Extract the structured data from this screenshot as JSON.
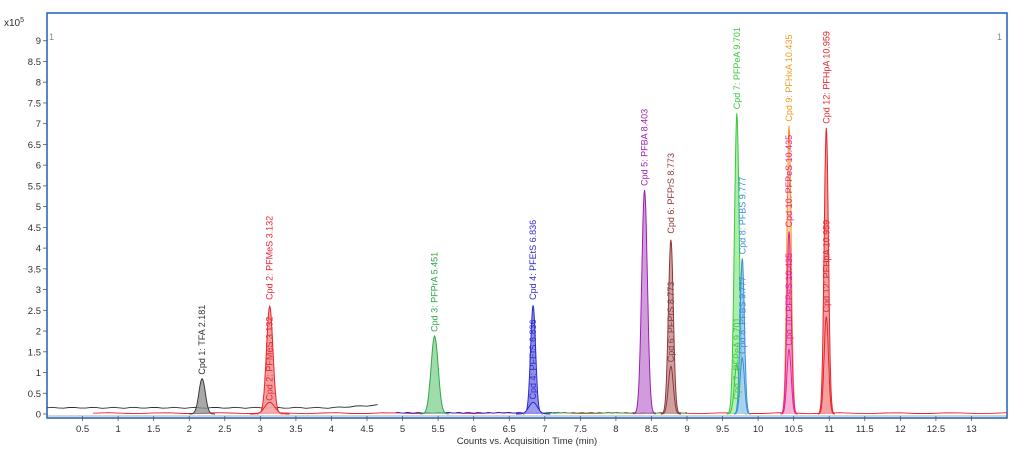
{
  "chart_data": {
    "type": "line",
    "y_multiplier": "x10",
    "y_exponent": "5",
    "corner_left": "1",
    "corner_right": "1",
    "xlabel": "Counts vs. Acquisition Time (min)",
    "xlim": [
      0,
      13.5
    ],
    "ylim": [
      0,
      9.5
    ],
    "x_ticks": [
      0.5,
      1,
      1.5,
      2,
      2.5,
      3,
      3.5,
      4,
      4.5,
      5,
      5.5,
      6,
      6.5,
      7,
      7.5,
      8,
      8.5,
      9,
      9.5,
      10,
      10.5,
      11,
      11.5,
      12,
      12.5,
      13
    ],
    "x_tick_labels": [
      "0.5",
      "1",
      "1.5",
      "2",
      "2.5",
      "3",
      "3.5",
      "4",
      "4.5",
      "5",
      "5.5",
      "6",
      "6.5",
      "7",
      "7.5",
      "8",
      "8.5",
      "9",
      "9.5",
      "10",
      "10.5",
      "11",
      "11.5",
      "12",
      "12.5",
      "13"
    ],
    "y_ticks": [
      0,
      0.5,
      1,
      1.5,
      2,
      2.5,
      3,
      3.5,
      4,
      4.5,
      5,
      5.5,
      6,
      6.5,
      7,
      7.5,
      8,
      8.5,
      9
    ],
    "y_tick_labels": [
      "0",
      "0.5",
      "1",
      "1.5",
      "2",
      "2.5",
      "3",
      "3.5",
      "4",
      "4.5",
      "5",
      "5.5",
      "6",
      "6.5",
      "7",
      "7.5",
      "8",
      "8.5",
      "9"
    ],
    "series": [
      {
        "label": "Cpd 1: TFA 2.181",
        "rt": 2.181,
        "height": 0.85,
        "width": 0.045,
        "color": "#3a3a3a",
        "fill": "#8c8c8c"
      },
      {
        "label": "Cpd 2: PFMeS 3.132",
        "rt": 3.132,
        "height": 2.6,
        "width": 0.045,
        "color": "#e8242b",
        "fill": "#f08080"
      },
      {
        "label": "Cpd 2: PFMeS 3.132",
        "rt": 3.132,
        "height": 0.28,
        "width": 0.07,
        "color": "#e8242b",
        "fill": "#f7b0b0"
      },
      {
        "label": "Cpd 3: PFPrA 5.451",
        "rt": 5.451,
        "height": 1.88,
        "width": 0.05,
        "color": "#2ea84a",
        "fill": "#7fd08f"
      },
      {
        "label": "Cpd 4: PFEtS 6.836",
        "rt": 6.836,
        "height": 2.62,
        "width": 0.035,
        "color": "#2b2bd0",
        "fill": "#6a6ae0"
      },
      {
        "label": "Cpd 4: PFEtS 6.836",
        "rt": 6.836,
        "height": 0.28,
        "width": 0.06,
        "color": "#2b2bd0",
        "fill": "#a0a0f0"
      },
      {
        "label": "Cpd 5: PFBA 8.403",
        "rt": 8.403,
        "height": 5.4,
        "width": 0.04,
        "color": "#9a1fb0",
        "fill": "#c37ad2"
      },
      {
        "label": "Cpd 6: PFPrS 8.773",
        "rt": 8.773,
        "height": 4.2,
        "width": 0.035,
        "color": "#8b3a3a",
        "fill": "#c08080"
      },
      {
        "label": "Cpd 6: PFPrS 8.773",
        "rt": 8.773,
        "height": 1.15,
        "width": 0.035,
        "color": "#8b3a3a",
        "fill": "#d0a0a0"
      },
      {
        "label": "Cpd 7: PFPeA 9.701",
        "rt": 9.701,
        "height": 7.25,
        "width": 0.035,
        "color": "#3cc83c",
        "fill": "#90e890"
      },
      {
        "label": "Cpd 7: PFPeA 9.701",
        "rt": 9.701,
        "height": 1.2,
        "width": 0.035,
        "color": "#3cc83c",
        "fill": "#b8f0b8"
      },
      {
        "label": "Cpd 8: PFBS 9.777",
        "rt": 9.777,
        "height": 3.75,
        "width": 0.03,
        "color": "#3a8fd8",
        "fill": "#8ac0ee"
      },
      {
        "label": "Cpd 8: PFBS 9.777",
        "rt": 9.777,
        "height": 1.35,
        "width": 0.03,
        "color": "#3a8fd8",
        "fill": "#b0d6f4"
      },
      {
        "label": "Cpd 9: PFHxA 10.435",
        "rt": 10.435,
        "height": 6.95,
        "width": 0.03,
        "color": "#f39a1e",
        "fill": "#f8c880"
      },
      {
        "label": "Cpd 10: PFPeS 10.435",
        "rt": 10.435,
        "height": 4.4,
        "width": 0.03,
        "color": "#e81e9e",
        "fill": "#f090c8"
      },
      {
        "label": "Cpd 10: PFPeS 10.435",
        "rt": 10.435,
        "height": 1.55,
        "width": 0.03,
        "color": "#e81e9e",
        "fill": "#f8b8dc"
      },
      {
        "label": "Cpd 12: PFHpA 10.959",
        "rt": 10.959,
        "height": 6.9,
        "width": 0.03,
        "color": "#e8242b",
        "fill": "#f08080"
      },
      {
        "label": "Cpd 12: PFHpA 10.959",
        "rt": 10.959,
        "height": 2.35,
        "width": 0.03,
        "color": "#e8242b",
        "fill": "#f4a0a0"
      }
    ],
    "peak_labels": [
      {
        "text": "Cpd 1: TFA 2.181",
        "x": 2.181,
        "y": 0.95,
        "color": "#2f2f2f"
      },
      {
        "text": "Cpd 2: PFMeS 3.132",
        "x": 3.132,
        "y": 2.75,
        "color": "#e8242b"
      },
      {
        "text": "Cpd 2: PFMeS 3.132",
        "x": 3.132,
        "y": 0.32,
        "color": "#e8242b"
      },
      {
        "text": "Cpd 3: PFPrA 5.451",
        "x": 5.451,
        "y": 1.98,
        "color": "#2ea84a"
      },
      {
        "text": "Cpd 4: PFEtS 6.836",
        "x": 6.836,
        "y": 2.75,
        "color": "#2b2bd0"
      },
      {
        "text": "Cpd 4: PFEtS 6.836",
        "x": 6.836,
        "y": 0.35,
        "color": "#2b2bd0"
      },
      {
        "text": "Cpd 5: PFBA 8.403",
        "x": 8.403,
        "y": 5.5,
        "color": "#9a1fb0"
      },
      {
        "text": "Cpd 6: PFPrS 8.773",
        "x": 8.773,
        "y": 4.35,
        "color": "#8b3a3a"
      },
      {
        "text": "Cpd 6: PFPrS 8.773",
        "x": 8.773,
        "y": 1.25,
        "color": "#8b3a3a"
      },
      {
        "text": "Cpd 7: PFPeA 9.701",
        "x": 9.701,
        "y": 7.35,
        "color": "#3cc83c"
      },
      {
        "text": "Cpd 7: PFPeA 9.701",
        "x": 9.701,
        "y": 0.35,
        "color": "#3cc83c"
      },
      {
        "text": "Cpd 8: PFBS 9.777",
        "x": 9.777,
        "y": 3.85,
        "color": "#3a8fd8"
      },
      {
        "text": "Cpd 8: PFBS 9.777",
        "x": 9.777,
        "y": 1.45,
        "color": "#3a8fd8"
      },
      {
        "text": "Cpd 9: PFHxA 10.435",
        "x": 10.435,
        "y": 7.05,
        "color": "#f39a1e"
      },
      {
        "text": "Cpd 10: PFPeS 10.435",
        "x": 10.435,
        "y": 4.5,
        "color": "#e81e9e"
      },
      {
        "text": "Cpd 10: PFPeS 10.435",
        "x": 10.435,
        "y": 1.65,
        "color": "#e81e9e"
      },
      {
        "text": "Cpd 12: PFHpA 10.959",
        "x": 10.959,
        "y": 7.0,
        "color": "#e8242b"
      },
      {
        "text": "Cpd 12: PFHpA 10.959",
        "x": 10.959,
        "y": 2.45,
        "color": "#e8242b"
      }
    ],
    "baselines": [
      {
        "from": 0,
        "to": 4.65,
        "y": 0.15,
        "color": "#2f2f2f",
        "fill": "#bbbbbb"
      },
      {
        "from": 0.65,
        "to": 13.5,
        "y": 0.02,
        "color": "#e8242b",
        "fill": "#f6b0b0"
      },
      {
        "from": 4.9,
        "to": 7.2,
        "y": 0.03,
        "color": "#2b2bd0",
        "fill": "#b8b8f0"
      },
      {
        "from": 7.0,
        "to": 9.0,
        "y": 0.03,
        "color": "#2ea84a",
        "fill": "#bde6c4"
      }
    ],
    "colors": {
      "frame": "#1f5fbf",
      "text": "#2f2f2f",
      "axis": "#555555",
      "background": "#ffffff"
    }
  }
}
